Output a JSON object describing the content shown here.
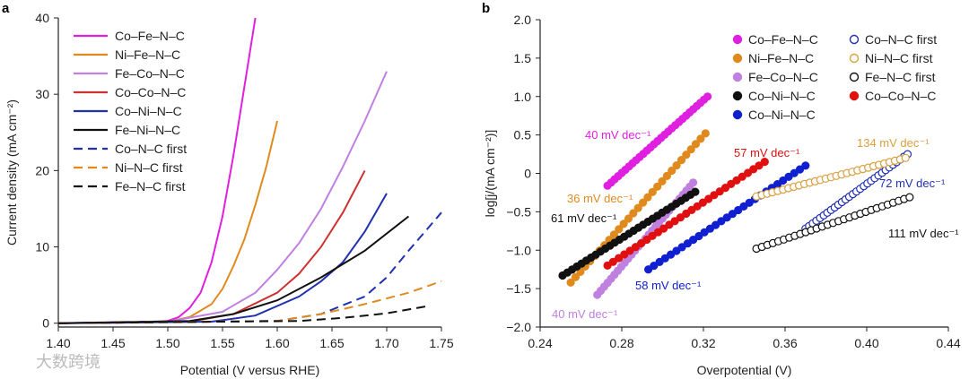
{
  "watermark": "大数跨境",
  "chart_data": [
    {
      "panel_label": "a",
      "type": "line",
      "xlabel": "Potential (V versus RHE)",
      "ylabel": "Current density (mA cm⁻²)",
      "xlim": [
        1.4,
        1.75
      ],
      "ylim": [
        -0.5,
        40
      ],
      "xticks": [
        "1.40",
        "1.45",
        "1.50",
        "1.55",
        "1.60",
        "1.65",
        "1.70",
        "1.75"
      ],
      "yticks": [
        "0",
        "10",
        "20",
        "30",
        "40"
      ],
      "legend_position": "top-left",
      "series": [
        {
          "name": "Co–Fe–N–C",
          "color": "#e020e0",
          "dash": false,
          "x": [
            1.4,
            1.48,
            1.5,
            1.51,
            1.52,
            1.53,
            1.54,
            1.55,
            1.56,
            1.57,
            1.58
          ],
          "y": [
            0,
            0.1,
            0.3,
            0.8,
            2.0,
            4.0,
            8.0,
            14.0,
            22.0,
            31.0,
            40.0
          ]
        },
        {
          "name": "Ni–Fe–N–C",
          "color": "#e08a1e",
          "dash": false,
          "x": [
            1.4,
            1.5,
            1.52,
            1.54,
            1.55,
            1.56,
            1.57,
            1.58,
            1.59,
            1.6
          ],
          "y": [
            0,
            0.2,
            0.8,
            2.5,
            4.5,
            7.5,
            11.0,
            15.5,
            20.5,
            26.5
          ]
        },
        {
          "name": "Fe–Co–N–C",
          "color": "#c080e0",
          "dash": false,
          "x": [
            1.4,
            1.5,
            1.55,
            1.58,
            1.6,
            1.62,
            1.64,
            1.66,
            1.68,
            1.7
          ],
          "y": [
            0,
            0.2,
            1.5,
            4.0,
            7.0,
            10.5,
            15.0,
            20.5,
            26.5,
            33.0
          ]
        },
        {
          "name": "Co–Co–N–C",
          "color": "#d03030",
          "dash": false,
          "x": [
            1.4,
            1.52,
            1.56,
            1.6,
            1.62,
            1.64,
            1.66,
            1.68
          ],
          "y": [
            0,
            0.2,
            1.2,
            4.0,
            6.5,
            10.0,
            14.5,
            20.0
          ]
        },
        {
          "name": "Co–Ni–N–C",
          "color": "#2030b0",
          "dash": false,
          "x": [
            1.4,
            1.54,
            1.58,
            1.62,
            1.64,
            1.66,
            1.68,
            1.7
          ],
          "y": [
            0,
            0.2,
            1.0,
            3.5,
            5.5,
            8.0,
            12.0,
            17.0
          ]
        },
        {
          "name": "Fe–Ni–N–C",
          "color": "#111111",
          "dash": false,
          "x": [
            1.4,
            1.52,
            1.56,
            1.6,
            1.64,
            1.68,
            1.72
          ],
          "y": [
            0,
            0.3,
            1.2,
            3.0,
            6.0,
            9.5,
            14.0
          ]
        },
        {
          "name": "Co–N–C first",
          "color": "#2030b0",
          "dash": true,
          "x": [
            1.4,
            1.6,
            1.64,
            1.68,
            1.7,
            1.72,
            1.75
          ],
          "y": [
            0,
            0.3,
            1.2,
            3.5,
            6.0,
            9.5,
            14.5
          ]
        },
        {
          "name": "Ni–N–C first",
          "color": "#e08a1e",
          "dash": true,
          "x": [
            1.4,
            1.6,
            1.64,
            1.68,
            1.72,
            1.75
          ],
          "y": [
            0,
            0.3,
            1.2,
            2.5,
            4.0,
            5.5
          ]
        },
        {
          "name": "Fe–N–C first",
          "color": "#111111",
          "dash": true,
          "x": [
            1.4,
            1.62,
            1.66,
            1.7,
            1.74
          ],
          "y": [
            0,
            0.3,
            0.7,
            1.3,
            2.3
          ]
        }
      ]
    },
    {
      "panel_label": "b",
      "type": "scatter",
      "xlabel": "Overpotential (V)",
      "ylabel": "log[j/(mA cm⁻²)]",
      "xlim": [
        0.24,
        0.44
      ],
      "ylim": [
        -2.0,
        2.0
      ],
      "xticks": [
        "0.24",
        "0.28",
        "0.32",
        "0.36",
        "0.40",
        "0.44"
      ],
      "yticks": [
        "2.0",
        "1.5",
        "1.0",
        "0.5",
        "0",
        "−0.5",
        "−1.0",
        "−1.5",
        "−2.0"
      ],
      "legend_position": "top-right",
      "series": [
        {
          "name": "Co–Fe–N–C",
          "color": "#e020e0",
          "filled": true,
          "x": [
            0.273,
            0.322
          ],
          "y": [
            -0.16,
            1.0
          ],
          "tafel": "40 mV dec⁻¹"
        },
        {
          "name": "Ni–Fe–N–C",
          "color": "#e08a1e",
          "filled": true,
          "x": [
            0.255,
            0.321
          ],
          "y": [
            -1.42,
            0.52
          ],
          "tafel": "36 mV dec⁻¹"
        },
        {
          "name": "Fe–Co–N–C",
          "color": "#c080e0",
          "filled": true,
          "x": [
            0.268,
            0.315
          ],
          "y": [
            -1.58,
            -0.12
          ],
          "tafel": "40 mV dec⁻¹"
        },
        {
          "name": "Co–Ni–N–C",
          "color": "#111111",
          "filled": true,
          "x": [
            0.251,
            0.316
          ],
          "y": [
            -1.33,
            -0.24
          ],
          "tafel": "61 mV dec⁻¹"
        },
        {
          "name": "Co–Ni–N–C",
          "color": "#1020d0",
          "filled": true,
          "x": [
            0.293,
            0.37
          ],
          "y": [
            -1.25,
            0.1
          ],
          "tafel": "58 mV dec⁻¹"
        },
        {
          "name": "Co–N–C first",
          "color": "#2030b0",
          "filled": false,
          "x": [
            0.37,
            0.42
          ],
          "y": [
            -0.72,
            0.25
          ],
          "tafel": "72 mV dec⁻¹"
        },
        {
          "name": "Ni–N–C first",
          "color": "#d8a040",
          "filled": false,
          "x": [
            0.346,
            0.419
          ],
          "y": [
            -0.3,
            0.2
          ],
          "tafel": "134 mV dec⁻¹"
        },
        {
          "name": "Fe–N–C first",
          "color": "#111111",
          "filled": false,
          "x": [
            0.346,
            0.421
          ],
          "y": [
            -0.98,
            -0.31
          ],
          "tafel": "111 mV dec⁻¹"
        },
        {
          "name": "Co–Co–N–C",
          "color": "#e01010",
          "filled": true,
          "x": [
            0.273,
            0.35
          ],
          "y": [
            -1.2,
            0.15
          ],
          "tafel": "57 mV dec⁻¹"
        }
      ]
    }
  ]
}
